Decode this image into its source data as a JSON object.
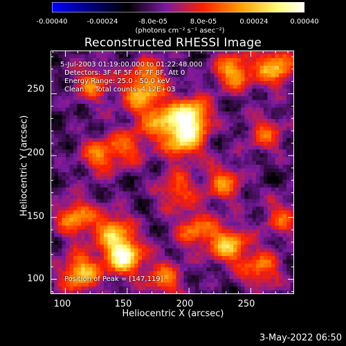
{
  "chart_data": {
    "type": "heatmap",
    "title": "Reconstructed RHESSI Image",
    "xlabel": "Heliocentric X (arcsec)",
    "ylabel": "Heliocentric Y (arcsec)",
    "xlim": [
      88,
      285
    ],
    "ylim": [
      88,
      285
    ],
    "x_ticks": [
      "100",
      "150",
      "200",
      "250"
    ],
    "y_ticks": [
      "100",
      "150",
      "200",
      "250"
    ],
    "colorbar": {
      "range": [
        -0.0004,
        0.0004
      ],
      "tick_labels": [
        "-0.00040",
        "-0.00024",
        "-8.0e-05",
        "8.0e-05",
        "0.00024",
        "0.00040"
      ],
      "unit_label": "(photons cm⁻² s⁻¹ asec⁻²)",
      "colors": [
        "#0000ff",
        "#000000",
        "#7a1aa0",
        "#ff2000",
        "#ffa000",
        "#ffff80",
        "#ffffff"
      ]
    },
    "annotations": [
      "5-Jul-2003 01:19:00.000 to 01:22:48.000",
      "Detectors: 3F 4F 5F 6F 7F 8F, Att 0",
      "Energy Range: 25.0 - 50.0 keV",
      "Clean     Total counts: 4.12E+03"
    ],
    "peak_label": "Position of Peak = [147,119]",
    "peak": [
      147,
      119
    ],
    "hotspots": [
      {
        "x": 147,
        "y": 119,
        "v": 1.0
      },
      {
        "x": 202,
        "y": 232,
        "v": 0.9
      },
      {
        "x": 196,
        "y": 212,
        "v": 0.75
      },
      {
        "x": 178,
        "y": 228,
        "v": 0.6
      },
      {
        "x": 160,
        "y": 248,
        "v": 0.55
      },
      {
        "x": 122,
        "y": 258,
        "v": 0.55
      },
      {
        "x": 236,
        "y": 268,
        "v": 0.7
      },
      {
        "x": 270,
        "y": 272,
        "v": 0.75
      },
      {
        "x": 228,
        "y": 178,
        "v": 0.55
      },
      {
        "x": 128,
        "y": 200,
        "v": 0.55
      },
      {
        "x": 190,
        "y": 172,
        "v": 0.5
      },
      {
        "x": 108,
        "y": 150,
        "v": 0.65
      },
      {
        "x": 138,
        "y": 140,
        "v": 0.6
      },
      {
        "x": 232,
        "y": 128,
        "v": 0.75
      },
      {
        "x": 205,
        "y": 140,
        "v": 0.55
      },
      {
        "x": 258,
        "y": 108,
        "v": 0.55
      },
      {
        "x": 262,
        "y": 218,
        "v": 0.45
      },
      {
        "x": 152,
        "y": 208,
        "v": 0.45
      },
      {
        "x": 112,
        "y": 105,
        "v": 0.8
      },
      {
        "x": 180,
        "y": 100,
        "v": 0.55
      },
      {
        "x": 275,
        "y": 150,
        "v": 0.45
      },
      {
        "x": 168,
        "y": 265,
        "v": 0.5
      }
    ]
  },
  "footer_timestamp": "3-May-2022 06:50"
}
